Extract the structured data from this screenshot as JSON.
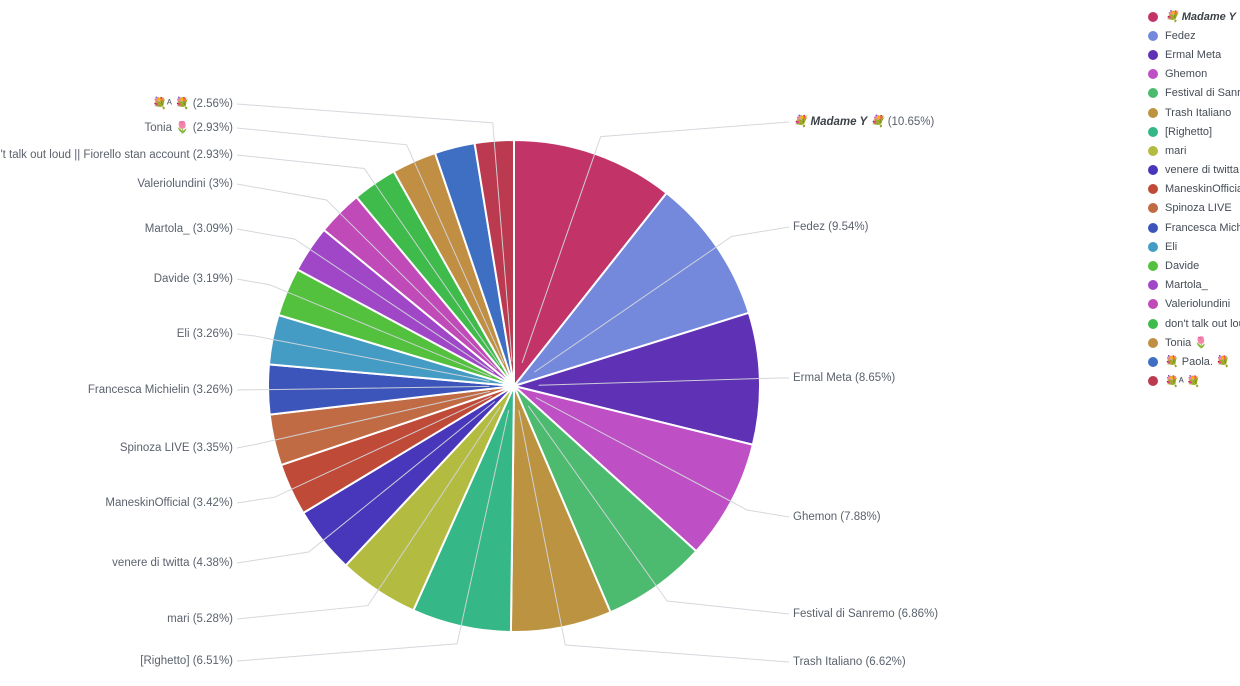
{
  "chart_data": {
    "type": "pie",
    "title": "",
    "legend_position": "right",
    "direction": "clockwise",
    "start_angle": "top",
    "leader_line_color": "#d2d5da",
    "slice_border_color": "#ffffff",
    "label_text_color": "#5b626d",
    "slices": [
      {
        "name": "💐 Madame Y 💐",
        "legend_label": "💐 Madame Y 💐",
        "value": 10.65,
        "pct_display": "10.65%",
        "color": "#c23467",
        "emphasis": true,
        "labeled": true
      },
      {
        "name": "Fedez",
        "legend_label": "Fedez",
        "value": 9.54,
        "pct_display": "9.54%",
        "color": "#7589dc",
        "emphasis": false,
        "labeled": true
      },
      {
        "name": "Ermal Meta",
        "legend_label": "Ermal Meta",
        "value": 8.65,
        "pct_display": "8.65%",
        "color": "#5f31b4",
        "emphasis": false,
        "labeled": true
      },
      {
        "name": "Ghemon",
        "legend_label": "Ghemon",
        "value": 7.88,
        "pct_display": "7.88%",
        "color": "#bf4fc4",
        "emphasis": false,
        "labeled": true
      },
      {
        "name": "Festival di Sanremo",
        "legend_label": "Festival di Sanremo",
        "value": 6.86,
        "pct_display": "6.86%",
        "color": "#4cbb70",
        "emphasis": false,
        "labeled": true
      },
      {
        "name": "Trash Italiano",
        "legend_label": "Trash Italiano",
        "value": 6.62,
        "pct_display": "6.62%",
        "color": "#bc9340",
        "emphasis": false,
        "labeled": true
      },
      {
        "name": "[Righetto]",
        "legend_label": "[Righetto]",
        "value": 6.51,
        "pct_display": "6.51%",
        "color": "#35b787",
        "emphasis": false,
        "labeled": true
      },
      {
        "name": "mari",
        "legend_label": "mari",
        "value": 5.28,
        "pct_display": "5.28%",
        "color": "#b4bb41",
        "emphasis": false,
        "labeled": true
      },
      {
        "name": "venere di twitta",
        "legend_label": "venere di twitta",
        "value": 4.38,
        "pct_display": "4.38%",
        "color": "#4836bb",
        "emphasis": false,
        "labeled": true
      },
      {
        "name": "ManeskinOfficial",
        "legend_label": "ManeskinOfficial",
        "value": 3.42,
        "pct_display": "3.42%",
        "color": "#c04a38",
        "emphasis": false,
        "labeled": true
      },
      {
        "name": "Spinoza LIVE",
        "legend_label": "Spinoza LIVE",
        "value": 3.35,
        "pct_display": "3.35%",
        "color": "#c06b44",
        "emphasis": false,
        "labeled": true
      },
      {
        "name": "Francesca Michielin",
        "legend_label": "Francesca Michielin",
        "value": 3.26,
        "pct_display": "3.26%",
        "color": "#3c55bb",
        "emphasis": false,
        "labeled": true
      },
      {
        "name": "Eli",
        "legend_label": "Eli",
        "value": 3.26,
        "pct_display": "3.26%",
        "color": "#449bc4",
        "emphasis": false,
        "labeled": true
      },
      {
        "name": "Davide",
        "legend_label": "Davide",
        "value": 3.19,
        "pct_display": "3.19%",
        "color": "#53c13e",
        "emphasis": false,
        "labeled": true
      },
      {
        "name": "Martola_",
        "legend_label": "Martola_",
        "value": 3.09,
        "pct_display": "3.09%",
        "color": "#a047c7",
        "emphasis": false,
        "labeled": true
      },
      {
        "name": "Valeriolundini",
        "legend_label": "Valeriolundini",
        "value": 3.0,
        "pct_display": "3%",
        "color": "#c04ab8",
        "emphasis": false,
        "labeled": true
      },
      {
        "name": "don't talk out loud || Fiorello stan account",
        "legend_label": "don't talk out loud ||...",
        "value": 2.93,
        "pct_display": "2.93%",
        "color": "#3ebb4a",
        "emphasis": false,
        "labeled": true
      },
      {
        "name": "Tonia 🌷",
        "legend_label": "Tonia 🌷",
        "value": 2.93,
        "pct_display": "2.93%",
        "color": "#c08f43",
        "emphasis": false,
        "labeled": true
      },
      {
        "name": "💐 Paola. 💐",
        "legend_label": "💐 Paola. 💐",
        "value": 2.64,
        "pct_display": "",
        "color": "#3e6fc2",
        "emphasis": false,
        "labeled": false
      },
      {
        "name": "💐ᴬ 💐",
        "legend_label": "💐ᴬ 💐",
        "value": 2.56,
        "pct_display": "2.56%",
        "color": "#bb3a50",
        "emphasis": false,
        "labeled": true
      }
    ]
  }
}
